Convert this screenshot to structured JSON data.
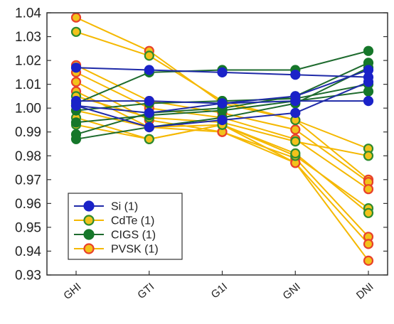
{
  "colors": {
    "si_line": "#1f2aa8",
    "si_marker": "#1a22c8",
    "cdte_line": "#f5b800",
    "cdte_fill": "#f2c21b",
    "cdte_edge": "#2e8b2e",
    "cigs_line": "#1e6b2e",
    "cigs_fill": "#16772a",
    "pvsk_line": "#f5b800",
    "pvsk_fill": "#f2c21b",
    "pvsk_edge": "#e8402a"
  },
  "chart_data": {
    "type": "line",
    "title": "",
    "xlabel": "",
    "ylabel": "",
    "categories": [
      "GHI",
      "GTI",
      "G1I",
      "GNI",
      "DNI"
    ],
    "ylim": [
      0.93,
      1.04
    ],
    "yticks": [
      "0.93",
      "0.94",
      "0.95",
      "0.96",
      "0.97",
      "0.98",
      "0.99",
      "1.00",
      "1.01",
      "1.02",
      "1.03",
      "1.04"
    ],
    "grid": false,
    "legend_position": "bottom-left",
    "legend": [
      {
        "key": "si",
        "label": "Si (1)"
      },
      {
        "key": "cdte",
        "label": "CdTe (1)"
      },
      {
        "key": "cigs",
        "label": "CIGS (1)"
      },
      {
        "key": "pvsk",
        "label": "PVSK (1)"
      }
    ],
    "series": [
      {
        "group": "si",
        "values": [
          1.017,
          1.016,
          1.015,
          1.014,
          1.013
        ]
      },
      {
        "group": "si",
        "values": [
          1.003,
          1.003,
          1.002,
          1.003,
          1.003
        ]
      },
      {
        "group": "si",
        "values": [
          1.001,
          0.998,
          1.002,
          1.005,
          1.016
        ]
      },
      {
        "group": "si",
        "values": [
          1.001,
          0.992,
          0.995,
          0.998,
          1.011
        ]
      },
      {
        "group": "cdte",
        "values": [
          1.032,
          1.022,
          1.003,
          0.995,
          0.983
        ]
      },
      {
        "group": "cdte",
        "values": [
          1.005,
          0.996,
          0.994,
          0.986,
          0.98
        ]
      },
      {
        "group": "cdte",
        "values": [
          0.993,
          0.987,
          0.993,
          0.98,
          0.958
        ]
      },
      {
        "group": "cdte",
        "values": [
          0.996,
          0.987,
          0.993,
          0.981,
          0.956
        ]
      },
      {
        "group": "cigs",
        "values": [
          1.002,
          1.015,
          1.016,
          1.016,
          1.024
        ]
      },
      {
        "group": "cigs",
        "values": [
          0.989,
          0.998,
          1.0,
          1.005,
          1.019
        ]
      },
      {
        "group": "cigs",
        "values": [
          0.987,
          0.992,
          0.996,
          1.002,
          1.017
        ]
      },
      {
        "group": "cigs",
        "values": [
          0.999,
          1.002,
          1.003,
          1.004,
          1.01
        ]
      },
      {
        "group": "cigs",
        "values": [
          0.994,
          0.997,
          0.999,
          1.003,
          1.007
        ]
      },
      {
        "group": "pvsk",
        "values": [
          1.038,
          1.024,
          1.002,
          0.995,
          0.97
        ]
      },
      {
        "group": "pvsk",
        "values": [
          1.018,
          1.003,
          0.998,
          0.991,
          0.969
        ]
      },
      {
        "group": "pvsk",
        "values": [
          1.015,
          1.0,
          0.996,
          0.987,
          0.966
        ]
      },
      {
        "group": "pvsk",
        "values": [
          1.011,
          0.995,
          0.99,
          0.979,
          0.946
        ]
      },
      {
        "group": "pvsk",
        "values": [
          1.007,
          0.992,
          0.99,
          0.977,
          0.943
        ]
      },
      {
        "group": "pvsk",
        "values": [
          0.999,
          0.992,
          0.993,
          0.977,
          0.936
        ]
      }
    ]
  }
}
